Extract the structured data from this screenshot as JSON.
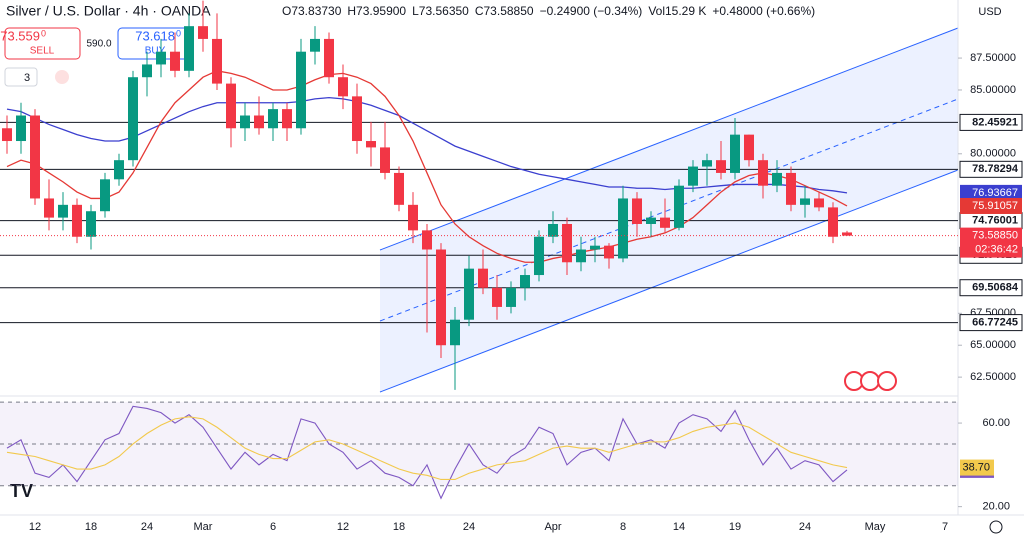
{
  "ui": {
    "symbol": "Silver / U.S. Dollar · 4h · OANDA",
    "ohlc": [
      "O73.83730",
      "H73.95900",
      "L73.56350",
      "C73.58850",
      "−0.24900 (−0.34%)",
      "Vol15.29 K",
      "+0.48000 (+0.66%)"
    ],
    "sell_price": "73.559",
    "sell_sup": "0",
    "sell": "SELL",
    "spread": "590.0",
    "buy_price": "73.618",
    "buy_sup": "0",
    "buy": "BUY",
    "currency": "USD",
    "indicators_count": "3",
    "countdown": "02:36:42"
  },
  "chart_data": {
    "type": "candlestick",
    "categories": [
      null,
      null,
      "12",
      null,
      null,
      null,
      "18",
      null,
      null,
      null,
      "24",
      null,
      null,
      null,
      "Mar",
      null,
      null,
      null,
      null,
      "6",
      null,
      null,
      null,
      null,
      "12",
      null,
      null,
      null,
      "18",
      null,
      null,
      null,
      null,
      "24",
      null,
      null,
      null,
      null,
      null,
      "Apr",
      null,
      null,
      null,
      null,
      "8",
      null,
      null,
      null,
      "14",
      null,
      null,
      null,
      "19",
      null,
      null,
      null,
      null,
      "24",
      null,
      null,
      null,
      null,
      "May",
      null,
      null,
      null,
      null,
      "7"
    ],
    "open": [
      82,
      81,
      83,
      76.5,
      75,
      76,
      73.5,
      75.5,
      78,
      79.5,
      86,
      87,
      88,
      86.5,
      90,
      89,
      85.5,
      82,
      83,
      82,
      83.5,
      82,
      88,
      89,
      86,
      84.5,
      81,
      80.5,
      78.5,
      76,
      74,
      72.5,
      65,
      67,
      71,
      69.5,
      68,
      69.5,
      70.5,
      73.5,
      74.5,
      71.5,
      72.5,
      72.8,
      71.8,
      76.5,
      74.5,
      75,
      74.2,
      77.5,
      79,
      79.5,
      78.5,
      81.5,
      79.5,
      77.5,
      78.5,
      76,
      76.5,
      75.8,
      73.8373,
      null,
      null,
      null,
      null,
      null,
      null,
      null
    ],
    "high": [
      83,
      84,
      83.5,
      78,
      77,
      76.5,
      76,
      78.5,
      80,
      86.5,
      88,
      89,
      89.5,
      91,
      92,
      91,
      86,
      84,
      84.5,
      84,
      84,
      89,
      90,
      89.5,
      87,
      85.5,
      82.5,
      82.5,
      79,
      77,
      74.5,
      73,
      68,
      72,
      72.5,
      70.5,
      70,
      71,
      74,
      75.5,
      75,
      73.5,
      73.5,
      73,
      77.5,
      77,
      75.5,
      76.5,
      78,
      79.5,
      80,
      81,
      82.8,
      81.5,
      80,
      79.5,
      79,
      77.5,
      77,
      76.2,
      73.959,
      null,
      null,
      null,
      null,
      null,
      null,
      null
    ],
    "low": [
      80,
      80,
      76,
      74,
      74,
      73,
      72.5,
      75,
      77.5,
      79,
      84.5,
      86,
      86,
      86,
      88,
      85,
      80.5,
      81,
      81.5,
      81,
      81,
      81.5,
      87,
      85.5,
      83.5,
      80,
      79,
      78,
      75.5,
      73,
      66,
      64,
      61.5,
      66.5,
      69,
      67,
      67.5,
      68.5,
      70,
      73,
      70.5,
      70.8,
      71.5,
      71,
      71.5,
      73.5,
      73.5,
      73.8,
      74,
      77,
      77.5,
      78,
      78,
      79,
      76.5,
      77,
      75.5,
      75,
      75.5,
      73,
      73.5635,
      null,
      null,
      null,
      null,
      null,
      null,
      null
    ],
    "close": [
      81,
      83,
      76.5,
      75,
      76,
      73.5,
      75.5,
      78,
      79.5,
      86,
      87,
      88,
      86.5,
      90,
      89,
      85.5,
      82,
      83,
      82,
      83.5,
      82,
      88,
      89,
      86,
      84.5,
      81,
      80.5,
      78.5,
      76,
      74,
      72.5,
      65,
      67,
      71,
      69.5,
      68,
      69.5,
      70.5,
      73.5,
      74.5,
      71.5,
      72.5,
      72.8,
      71.8,
      76.5,
      74.5,
      75,
      74.2,
      77.5,
      79,
      79.5,
      78.5,
      81.5,
      79.5,
      77.5,
      78.5,
      76,
      76.5,
      75.8,
      73.5,
      73.5885,
      null,
      null,
      null,
      null,
      null,
      null,
      null
    ],
    "up_color": "#089981",
    "down_color": "#f23645",
    "series": [
      {
        "color": "#3b3fcf",
        "values": [
          83.5,
          83.3,
          82.8,
          82.3,
          81.9,
          81.5,
          81.2,
          81,
          81,
          81.3,
          81.8,
          82.3,
          82.8,
          83.3,
          83.7,
          84,
          84,
          84,
          84,
          84,
          84,
          84.1,
          84.3,
          84.4,
          84.3,
          84.1,
          83.8,
          83.4,
          83,
          82.4,
          81.8,
          81.2,
          80.6,
          80.2,
          79.8,
          79.4,
          79,
          78.7,
          78.4,
          78.2,
          78,
          77.8,
          77.6,
          77.4,
          77.4,
          77.3,
          77.3,
          77.2,
          77.3,
          77.3,
          77.4,
          77.5,
          77.6,
          77.6,
          77.6,
          77.6,
          77.5,
          77.4,
          77.2,
          77.1,
          76.93667,
          null,
          null,
          null,
          null,
          null,
          null,
          null
        ]
      },
      {
        "color": "#e53935",
        "values": [
          79,
          79.5,
          79.2,
          78.5,
          77.8,
          77,
          76.5,
          76.5,
          77,
          78.5,
          80.5,
          82.5,
          84,
          85,
          86,
          86.5,
          86.3,
          86,
          85.5,
          85,
          85,
          85.3,
          85.8,
          86.2,
          86.3,
          86,
          85.5,
          84.5,
          83,
          81,
          78.5,
          76,
          74.5,
          73.5,
          72.8,
          72.2,
          71.8,
          71.5,
          71.5,
          71.8,
          72,
          72.3,
          72.5,
          72.7,
          73,
          73.3,
          73.5,
          73.8,
          74.3,
          75,
          76,
          77,
          77.8,
          78.3,
          78.5,
          78.3,
          78,
          77.5,
          77,
          76.5,
          75.91057,
          null,
          null,
          null,
          null,
          null,
          null,
          null
        ]
      }
    ],
    "levels": [
      82.45921,
      78.78294,
      74.76001,
      72.04623,
      69.50684,
      66.77245
    ],
    "last_price": {
      "value": 73.5885,
      "label": "73.58850"
    },
    "ylim": [
      61.1,
      92.05
    ],
    "yticks": [
      {
        "value": 87.5,
        "label": "87.50000"
      },
      {
        "value": 85,
        "label": "85.00000"
      },
      {
        "value": 80,
        "label": "80.00000"
      },
      {
        "value": 67.5,
        "label": "67.50000"
      },
      {
        "value": 65,
        "label": "65.00000"
      },
      {
        "value": 62.5,
        "label": "62.50000"
      }
    ],
    "rsi": {
      "ylim": [
        16,
        72
      ],
      "yticks": [
        {
          "value": 60,
          "label": "60.00"
        },
        {
          "value": 20,
          "label": "20.00"
        }
      ],
      "bands": [
        70,
        50,
        30
      ],
      "series": [
        {
          "color": "#7e57c2",
          "values": [
            48,
            52,
            36,
            34,
            40,
            32,
            42,
            52,
            55,
            68,
            67,
            65,
            60,
            64,
            58,
            48,
            38,
            46,
            40,
            45,
            42,
            62,
            60,
            50,
            46,
            38,
            42,
            36,
            34,
            30,
            40,
            24,
            38,
            50,
            40,
            36,
            44,
            48,
            58,
            55,
            40,
            46,
            48,
            42,
            62,
            50,
            52,
            48,
            60,
            64,
            62,
            56,
            66,
            52,
            40,
            48,
            38,
            42,
            40,
            32,
            37.59,
            null,
            null,
            null,
            null,
            null,
            null,
            null
          ]
        },
        {
          "color": "#f2c94c",
          "values": [
            46,
            45,
            44,
            42,
            40,
            38,
            38,
            40,
            44,
            50,
            55,
            59,
            62,
            63,
            62,
            58,
            53,
            48,
            45,
            43,
            43,
            47,
            51,
            52,
            50,
            47,
            44,
            41,
            38,
            36,
            35,
            33,
            33,
            36,
            38,
            40,
            41,
            42,
            45,
            48,
            49,
            48,
            48,
            46,
            48,
            50,
            51,
            51,
            53,
            56,
            58,
            59,
            60,
            58,
            54,
            50,
            46,
            44,
            42,
            40,
            38.7,
            null,
            null,
            null,
            null,
            null,
            null,
            null
          ],
          "value_labels": [
            null,
            null,
            null,
            null,
            null,
            null,
            null,
            null,
            null,
            null,
            null,
            null,
            null,
            null,
            null,
            null,
            null,
            null,
            null,
            null,
            null,
            null,
            null,
            null,
            null,
            null,
            null,
            null,
            null,
            null,
            null,
            null,
            null,
            null,
            null,
            null,
            null,
            null,
            null,
            null,
            null,
            null,
            null,
            null,
            null,
            null,
            null,
            null,
            null,
            null,
            null,
            null,
            null,
            null,
            null,
            null,
            null,
            null,
            null,
            null,
            "38.70",
            null,
            null,
            null,
            null,
            null,
            null,
            null
          ]
        }
      ]
    }
  }
}
